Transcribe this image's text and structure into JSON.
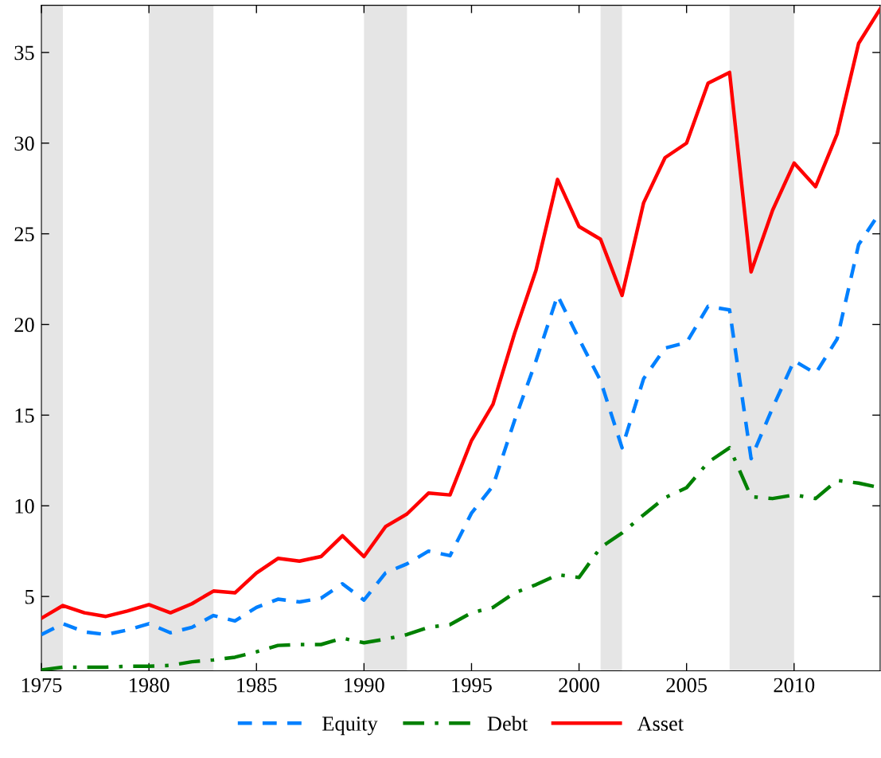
{
  "chart_data": {
    "type": "line",
    "x": [
      1975,
      1976,
      1977,
      1978,
      1979,
      1980,
      1981,
      1982,
      1983,
      1984,
      1985,
      1986,
      1987,
      1988,
      1989,
      1990,
      1991,
      1992,
      1993,
      1994,
      1995,
      1996,
      1997,
      1998,
      1999,
      2000,
      2001,
      2002,
      2003,
      2004,
      2005,
      2006,
      2007,
      2008,
      2009,
      2010,
      2011,
      2012,
      2013,
      2014
    ],
    "series": [
      {
        "name": "Equity",
        "color": "#0080ff",
        "line_style": "dashed",
        "values": [
          2.9,
          3.5,
          3.05,
          2.9,
          3.15,
          3.5,
          3.0,
          3.3,
          3.95,
          3.65,
          4.4,
          4.85,
          4.7,
          4.9,
          5.7,
          4.8,
          6.3,
          6.8,
          7.5,
          7.25,
          9.6,
          11.1,
          14.7,
          18.0,
          21.6,
          19.2,
          16.9,
          13.2,
          17.0,
          18.7,
          19.0,
          21.0,
          20.8,
          12.6,
          15.4,
          18.0,
          17.3,
          19.2,
          24.4,
          26.2
        ]
      },
      {
        "name": "Debt",
        "color": "#008000",
        "line_style": "dashdot",
        "values": [
          0.95,
          1.1,
          1.1,
          1.1,
          1.15,
          1.15,
          1.2,
          1.4,
          1.5,
          1.65,
          1.95,
          2.3,
          2.35,
          2.35,
          2.7,
          2.45,
          2.65,
          2.9,
          3.3,
          3.45,
          4.1,
          4.4,
          5.2,
          5.65,
          6.2,
          6.05,
          7.7,
          8.5,
          9.5,
          10.45,
          11.0,
          12.4,
          13.2,
          10.5,
          10.4,
          10.6,
          10.4,
          11.4,
          11.25,
          11.0
        ]
      },
      {
        "name": "Asset",
        "color": "#ff0000",
        "line_style": "solid",
        "values": [
          3.8,
          4.5,
          4.1,
          3.9,
          4.2,
          4.55,
          4.1,
          4.6,
          5.3,
          5.2,
          6.3,
          7.1,
          6.95,
          7.2,
          8.35,
          7.2,
          8.85,
          9.55,
          10.7,
          10.6,
          13.6,
          15.6,
          19.5,
          23.0,
          28.0,
          25.4,
          24.7,
          21.6,
          26.7,
          29.2,
          30.0,
          33.3,
          33.9,
          22.9,
          26.3,
          28.9,
          27.6,
          30.5,
          35.5,
          37.4
        ]
      }
    ],
    "bands": [
      {
        "axis": "x",
        "from": 1975,
        "to": 1976,
        "label": null,
        "color": "#e5e5e5"
      },
      {
        "axis": "x",
        "from": 1980,
        "to": 1983,
        "label": null,
        "color": "#e5e5e5"
      },
      {
        "axis": "x",
        "from": 1990,
        "to": 1992,
        "label": null,
        "color": "#e5e5e5"
      },
      {
        "axis": "x",
        "from": 2001,
        "to": 2002,
        "label": null,
        "color": "#e5e5e5"
      },
      {
        "axis": "x",
        "from": 2007,
        "to": 2010,
        "label": null,
        "color": "#e5e5e5"
      }
    ],
    "xlim": [
      1975,
      2014
    ],
    "xticks": [
      1975,
      1980,
      1985,
      1990,
      1995,
      2000,
      2005,
      2010
    ],
    "ylim": [
      0.9,
      37.6
    ],
    "yticks": [
      5,
      10,
      15,
      20,
      25,
      30,
      35
    ],
    "grid": false,
    "legend": "bottom",
    "marker": "none"
  }
}
